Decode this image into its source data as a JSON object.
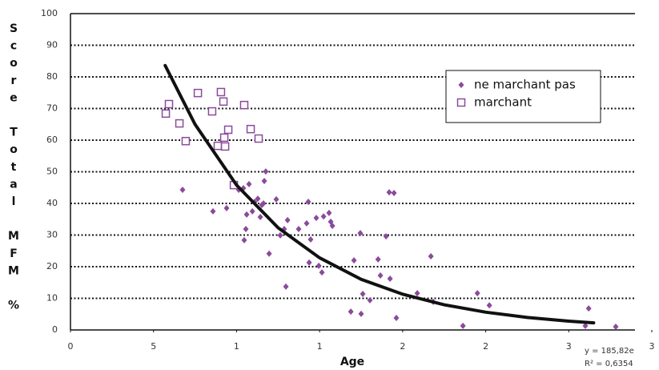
{
  "chart_data": {
    "type": "scatter",
    "x_label": "Age",
    "y_label": "Score Total MFM %",
    "annotations": [
      "y = 185,82e",
      "R² = 0,6354"
    ],
    "xlim": [
      0,
      3.5
    ],
    "xticks": [
      0,
      {
        "value": 0.5,
        "label": "5"
      },
      1,
      {
        "value": 1.5,
        "label": "1"
      },
      2,
      {
        "value": 2.5,
        "label": "2"
      },
      3,
      {
        "value": 3.5,
        "label": "3"
      }
    ],
    "ylim": [
      0,
      100
    ],
    "yticks": [
      0,
      10,
      20,
      30,
      40,
      50,
      60,
      70,
      80,
      90,
      100
    ],
    "grid": true,
    "legend": "upper right",
    "series": [
      {
        "name": "ne marchant pas",
        "color": "#8b4a9c",
        "marker": "diamond",
        "x": [
          0.675,
          0.858,
          0.94,
          1.013,
          1.041,
          1.046,
          1.056,
          1.061,
          1.075,
          1.095,
          1.109,
          1.128,
          1.143,
          1.152,
          1.162,
          1.167,
          1.176,
          1.196,
          1.239,
          1.263,
          1.287,
          1.297,
          1.307,
          1.374,
          1.422,
          1.432,
          1.437,
          1.446,
          1.48,
          1.495,
          1.514,
          1.524,
          1.557,
          1.567,
          1.577,
          1.688,
          1.707,
          1.745,
          1.75,
          1.76,
          1.803,
          1.852,
          1.866,
          1.9,
          1.919,
          1.924,
          1.948,
          1.962,
          2.088,
          2.17,
          2.184,
          2.363,
          2.45,
          2.522,
          3.1,
          3.12,
          3.283
        ],
        "values": [
          44.3,
          37.5,
          38.5,
          44.3,
          44.8,
          28.4,
          31.9,
          36.5,
          46.1,
          37.5,
          40.5,
          41.5,
          35.7,
          39.5,
          40.0,
          47.1,
          50.1,
          24.1,
          41.3,
          29.9,
          31.9,
          13.7,
          34.7,
          31.9,
          33.7,
          40.5,
          21.3,
          28.6,
          35.4,
          20.3,
          18.2,
          35.9,
          37.0,
          34.2,
          32.9,
          5.8,
          22.0,
          30.6,
          5.1,
          11.4,
          9.4,
          22.3,
          17.2,
          29.6,
          43.5,
          16.2,
          43.3,
          3.8,
          11.6,
          23.3,
          8.9,
          1.3,
          11.6,
          7.8,
          1.3,
          6.8,
          1.0
        ]
      },
      {
        "name": "marchant",
        "color": "#8b4a9c",
        "marker": "square",
        "x": [
          0.574,
          0.593,
          0.656,
          0.694,
          0.767,
          0.853,
          0.887,
          0.906,
          0.921,
          0.926,
          0.931,
          0.95,
          0.984,
          1.046,
          1.085,
          1.133
        ],
        "values": [
          68.4,
          71.4,
          65.3,
          59.7,
          74.9,
          69.1,
          58.2,
          75.2,
          72.2,
          60.8,
          58.0,
          63.3,
          45.8,
          71.1,
          63.5,
          60.5
        ]
      }
    ],
    "trendline": {
      "color": "#111111",
      "x": [
        0.57,
        0.75,
        1,
        1.25,
        1.5,
        1.75,
        2,
        2.25,
        2.5,
        2.75,
        3,
        3.15
      ],
      "values": [
        83.6,
        65.0,
        45.8,
        32.3,
        22.8,
        16.0,
        11.3,
        7.96,
        5.62,
        3.96,
        2.79,
        2.26
      ]
    }
  }
}
